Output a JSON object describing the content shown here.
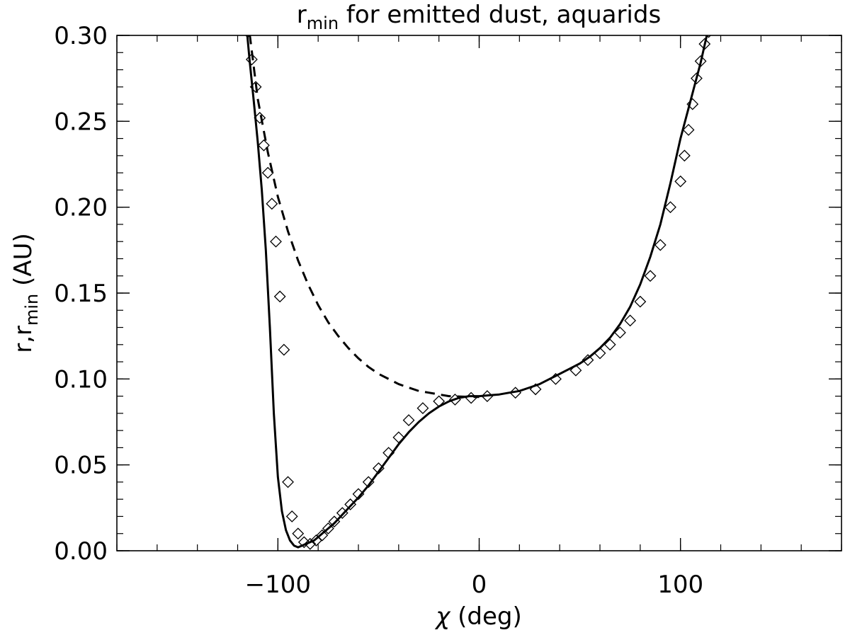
{
  "chart_data": {
    "type": "line",
    "title": {
      "main": "r",
      "sub": "min",
      "rest": " for emitted dust, aquarids"
    },
    "xlabel": {
      "symbol": "χ",
      "rest": " (deg)"
    },
    "ylabel": {
      "pre": "r,r",
      "sub": "min",
      "rest": " (AU)"
    },
    "xlim": [
      -180,
      180
    ],
    "ylim": [
      0.0,
      0.3
    ],
    "xticks": [
      -100,
      0,
      100
    ],
    "xtick_labels": [
      "−100",
      "0",
      "100"
    ],
    "yticks": [
      0.0,
      0.05,
      0.1,
      0.15,
      0.2,
      0.25,
      0.3
    ],
    "ytick_labels": [
      "0.00",
      "0.05",
      "0.10",
      "0.15",
      "0.20",
      "0.25",
      "0.30"
    ],
    "grid": false,
    "series": [
      {
        "style": "solid",
        "x": [
          -116,
          -114,
          -112,
          -110,
          -108,
          -106,
          -104,
          -102,
          -100,
          -98,
          -96,
          -94,
          -92,
          -90,
          -88,
          -86,
          -84,
          -82,
          -80,
          -78,
          -75,
          -72,
          -68,
          -64,
          -60,
          -55,
          -50,
          -45,
          -40,
          -35,
          -30,
          -25,
          -20,
          -15,
          -10,
          -5,
          0,
          5,
          10,
          15,
          20,
          25,
          30,
          35,
          40,
          45,
          50,
          55,
          60,
          65,
          70,
          75,
          80,
          85,
          90,
          95,
          100,
          105,
          110,
          115
        ],
        "y": [
          0.31,
          0.285,
          0.262,
          0.238,
          0.21,
          0.175,
          0.13,
          0.08,
          0.043,
          0.023,
          0.012,
          0.006,
          0.003,
          0.002,
          0.003,
          0.004,
          0.005,
          0.006,
          0.008,
          0.01,
          0.013,
          0.016,
          0.021,
          0.026,
          0.031,
          0.038,
          0.046,
          0.054,
          0.062,
          0.069,
          0.075,
          0.08,
          0.084,
          0.087,
          0.089,
          0.09,
          0.09,
          0.0905,
          0.091,
          0.092,
          0.093,
          0.095,
          0.097,
          0.1,
          0.103,
          0.106,
          0.109,
          0.113,
          0.118,
          0.124,
          0.132,
          0.142,
          0.155,
          0.171,
          0.19,
          0.214,
          0.24,
          0.262,
          0.284,
          0.31
        ]
      },
      {
        "style": "dashed",
        "x": [
          -115,
          -110,
          -105,
          -100,
          -95,
          -90,
          -85,
          -80,
          -75,
          -70,
          -65,
          -60,
          -55,
          -50,
          -45,
          -40,
          -35,
          -30,
          -25,
          -20,
          -15,
          -10,
          -5,
          0
        ],
        "y": [
          0.31,
          0.263,
          0.232,
          0.206,
          0.186,
          0.169,
          0.155,
          0.143,
          0.133,
          0.125,
          0.118,
          0.112,
          0.107,
          0.103,
          0.1,
          0.097,
          0.095,
          0.093,
          0.092,
          0.091,
          0.09,
          0.0898,
          0.0896,
          0.0895
        ]
      },
      {
        "style": "markers-diamond",
        "x": [
          -115,
          -113,
          -111,
          -109,
          -107,
          -105,
          -103,
          -101,
          -99,
          -97,
          -95,
          -93,
          -90,
          -87,
          -84,
          -81,
          -78,
          -75,
          -72,
          -68,
          -64,
          -60,
          -55,
          -50,
          -45,
          -40,
          -35,
          -28,
          -20,
          -12,
          -4,
          4,
          18,
          28,
          38,
          48,
          54,
          60,
          65,
          70,
          75,
          80,
          85,
          90,
          95,
          100,
          102,
          104,
          106,
          108,
          110,
          112,
          114
        ],
        "y": [
          0.302,
          0.286,
          0.27,
          0.252,
          0.236,
          0.22,
          0.202,
          0.18,
          0.148,
          0.117,
          0.04,
          0.02,
          0.01,
          0.005,
          0.004,
          0.006,
          0.009,
          0.013,
          0.017,
          0.022,
          0.027,
          0.033,
          0.04,
          0.048,
          0.057,
          0.066,
          0.076,
          0.083,
          0.087,
          0.088,
          0.089,
          0.09,
          0.092,
          0.094,
          0.1,
          0.105,
          0.111,
          0.115,
          0.12,
          0.127,
          0.134,
          0.145,
          0.16,
          0.178,
          0.2,
          0.215,
          0.23,
          0.245,
          0.26,
          0.275,
          0.285,
          0.295,
          0.302
        ]
      }
    ]
  }
}
